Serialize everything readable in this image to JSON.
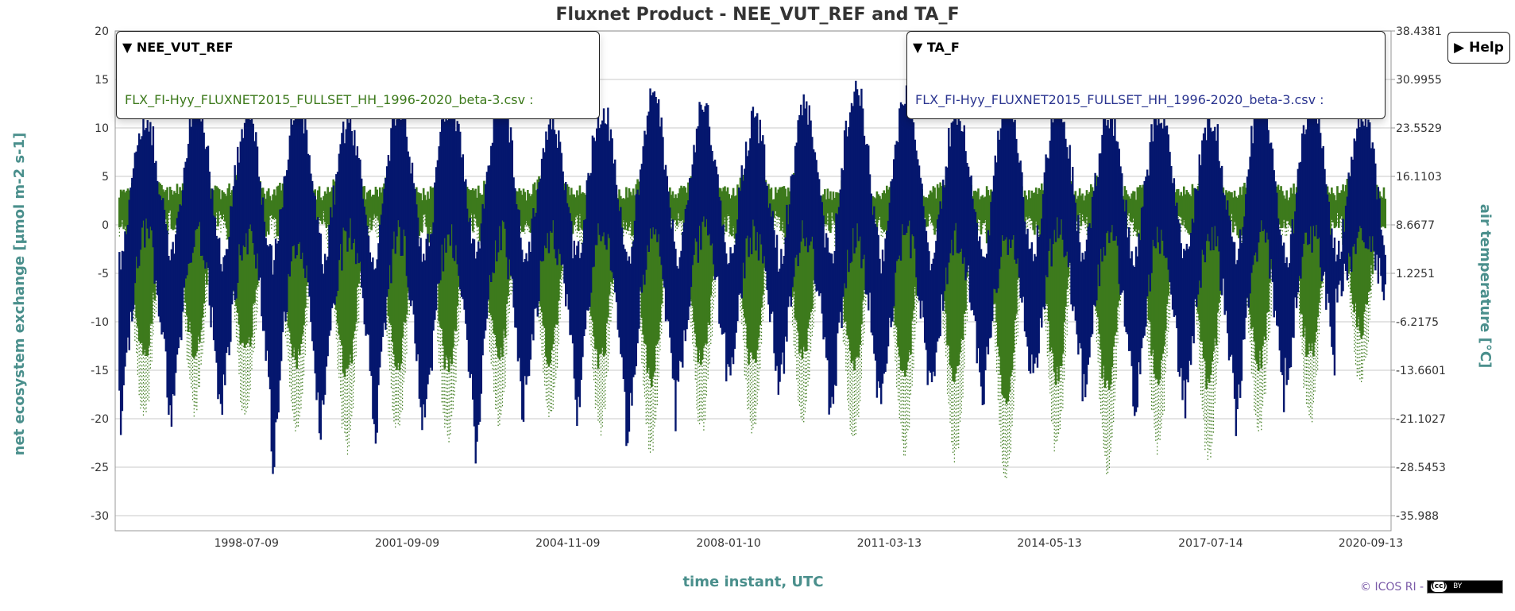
{
  "title": "Fluxnet Product - NEE_VUT_REF and TA_F",
  "legend": [
    {
      "title": "▼ NEE_VUT_REF",
      "file": "FLX_FI-Hyy_FLUXNET2015_FULLSET_HH_1996-2020_beta-3.csv :",
      "color": "#3d7a1c"
    },
    {
      "title": "▼ TA_F",
      "file": "FLX_FI-Hyy_FLUXNET2015_FULLSET_HH_1996-2020_beta-3.csv :",
      "color": "#2b3590"
    }
  ],
  "help_label": "▶ Help",
  "footer": {
    "text": "© ICOS RI -",
    "badge_cc": "(cc)",
    "badge_by": "BY"
  },
  "chart_data": {
    "type": "scatter",
    "title": "Fluxnet Product - NEE_VUT_REF and TA_F",
    "xlabel": "time instant, UTC",
    "ylabel": "net ecosystem exchange [µmol m-2 s-1]",
    "y2label": "air temperature [°C]",
    "x_ticks": [
      "1998-07-09",
      "2001-09-09",
      "2004-11-09",
      "2008-01-10",
      "2011-03-13",
      "2014-05-13",
      "2017-07-14",
      "2020-09-13"
    ],
    "x_tick_years": [
      1998.52,
      2001.69,
      2004.86,
      2008.03,
      2011.2,
      2014.36,
      2017.54,
      2020.7
    ],
    "xlim_years": [
      1995.93,
      2021.1
    ],
    "ylim": [
      -31.56,
      20
    ],
    "y_ticks": [
      "20",
      "15",
      "10",
      "5",
      "0",
      "-5",
      "-10",
      "-15",
      "-20",
      "-25",
      "-30"
    ],
    "y2_ticks": [
      "38.4381",
      "30.9955",
      "23.5529",
      "16.1103",
      "8.6677",
      "1.2251",
      "-6.2175",
      "-13.6601",
      "-21.1027",
      "-28.5453",
      "-35.988"
    ],
    "y2_transform": {
      "offset": 8.6677,
      "scale": 1.48852
    },
    "grid": true,
    "series": [
      {
        "name": "NEE_VUT_REF",
        "color": "#3d7a1c",
        "axis": "left",
        "years": [
          1996,
          1997,
          1998,
          1999,
          2000,
          2001,
          2002,
          2003,
          2004,
          2005,
          2006,
          2007,
          2008,
          2009,
          2010,
          2011,
          2012,
          2013,
          2014,
          2015,
          2016,
          2017,
          2018,
          2019,
          2020
        ],
        "annual_min": [
          -21,
          -20,
          -21,
          -22,
          -24,
          -22,
          -23,
          -21,
          -21,
          -22,
          -24,
          -22,
          -22,
          -21,
          -23,
          -24,
          -25,
          -27,
          -24,
          -26,
          -24,
          -25,
          -22,
          -21,
          -17
        ],
        "annual_max": [
          12,
          10,
          12,
          11,
          12,
          10,
          11,
          11,
          10,
          11,
          12,
          10,
          11,
          11,
          12,
          11,
          10,
          10,
          11,
          11,
          10,
          10,
          11,
          10,
          10
        ]
      },
      {
        "name": "TA_F",
        "color": "#05176e",
        "axis": "right",
        "years": [
          1996,
          1997,
          1998,
          1999,
          2000,
          2001,
          2002,
          2003,
          2004,
          2005,
          2006,
          2007,
          2008,
          2009,
          2010,
          2011,
          2012,
          2013,
          2014,
          2015,
          2016,
          2017,
          2018,
          2019,
          2020
        ],
        "annual_max": [
          27.5,
          29,
          27.5,
          29.5,
          27,
          28.5,
          30,
          30.5,
          27.5,
          29,
          30.5,
          29,
          27,
          29,
          32.2,
          31,
          28,
          29.5,
          30,
          28,
          29,
          27.5,
          31,
          30,
          29
        ],
        "annual_min": [
          -24,
          -24,
          -21,
          -32,
          -21,
          -28,
          -24,
          -29,
          -20,
          -23,
          -27,
          -18,
          -18,
          -19.5,
          -24,
          -21,
          -20,
          -21,
          -18,
          -20,
          -24,
          -22,
          -25,
          -18,
          -7
        ]
      }
    ]
  }
}
